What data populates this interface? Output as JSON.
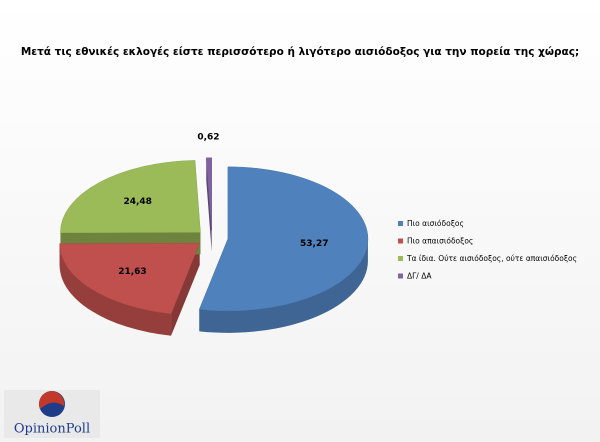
{
  "chart_data": {
    "type": "pie",
    "title": "Μετά τις εθνικές εκλογές είστε περισσότερο ή λιγότερο αισιόδοξος για την πορεία της χώρας;",
    "categories": [
      "Πιο αισιόδοξος",
      "Πιο απαισιόδοξος",
      "Τα ίδια. Ούτε αισιόδοξος, ούτε απαισιόδοξος",
      "ΔΓ/ ΔΑ"
    ],
    "values": [
      53.27,
      21.63,
      24.48,
      0.62
    ],
    "value_labels": [
      "53,27",
      "21,63",
      "24,48",
      "0,62"
    ],
    "colors": [
      "#4f81bd",
      "#c0504d",
      "#9bbb59",
      "#8064a2"
    ],
    "legend": "right"
  },
  "logo": "OpinionPoll"
}
